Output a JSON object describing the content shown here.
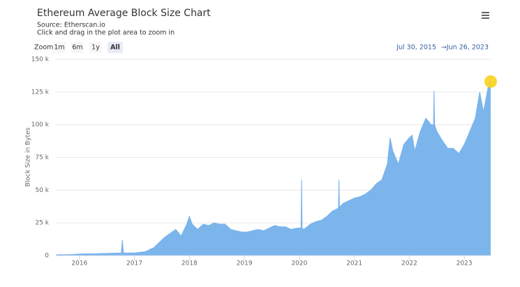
{
  "chart_data": {
    "type": "area",
    "title": "Ethereum Average Block Size Chart",
    "subtitle": "Source: Etherscan.io",
    "note": "Click and drag in the plot area to zoom in",
    "zoom_label": "Zoom",
    "zoom_buttons": [
      "1m",
      "6m",
      "1y",
      "All"
    ],
    "zoom_selected": 3,
    "range_from": "Jul 30, 2015",
    "range_separator": "→",
    "range_to": "Jun 26, 2023",
    "y_label": "Block Size in Bytes",
    "color": "#7cb5ec",
    "highlight_color": "#f7d21e",
    "grid": true,
    "xlim": [
      2015.57,
      2023.48
    ],
    "xticks": [
      2016,
      2017,
      2018,
      2019,
      2020,
      2021,
      2022,
      2023
    ],
    "ylim": [
      0,
      150000
    ],
    "yticks": [
      0,
      {
        "value": 25000,
        "label": "25 k"
      },
      {
        "value": 50000,
        "label": "50 k"
      },
      {
        "value": 75000,
        "label": "75 k"
      },
      {
        "value": 100000,
        "label": "100 k"
      },
      {
        "value": 125000,
        "label": "125 k"
      },
      {
        "value": 150000,
        "label": "150 k"
      }
    ],
    "x": [
      2015.58,
      2015.8,
      2016.0,
      2016.3,
      2016.6,
      2016.76,
      2016.78,
      2016.8,
      2017.0,
      2017.2,
      2017.35,
      2017.45,
      2017.55,
      2017.65,
      2017.75,
      2017.85,
      2017.95,
      2018.0,
      2018.05,
      2018.15,
      2018.25,
      2018.35,
      2018.45,
      2018.55,
      2018.65,
      2018.75,
      2018.85,
      2018.95,
      2019.05,
      2019.15,
      2019.25,
      2019.35,
      2019.45,
      2019.55,
      2019.65,
      2019.75,
      2019.85,
      2019.95,
      2020.03,
      2020.04,
      2020.05,
      2020.08,
      2020.2,
      2020.3,
      2020.4,
      2020.5,
      2020.6,
      2020.7,
      2020.71,
      2020.72,
      2020.73,
      2020.8,
      2020.9,
      2021.0,
      2021.1,
      2021.2,
      2021.3,
      2021.4,
      2021.5,
      2021.6,
      2021.65,
      2021.7,
      2021.8,
      2021.9,
      2022.0,
      2022.05,
      2022.1,
      2022.2,
      2022.3,
      2022.4,
      2022.44,
      2022.45,
      2022.46,
      2022.5,
      2022.6,
      2022.7,
      2022.8,
      2022.9,
      2023.0,
      2023.1,
      2023.2,
      2023.28,
      2023.35,
      2023.43,
      2023.48
    ],
    "values": [
      700,
      700,
      1200,
      1500,
      1800,
      2000,
      12000,
      2000,
      2000,
      3000,
      6000,
      10000,
      14000,
      17000,
      20000,
      15000,
      24000,
      30000,
      24000,
      20000,
      24000,
      23000,
      25000,
      24000,
      24000,
      20000,
      19000,
      18000,
      18000,
      19000,
      20000,
      19000,
      21000,
      23000,
      22000,
      22000,
      20000,
      21000,
      21000,
      58000,
      21000,
      20000,
      24000,
      26000,
      27000,
      30000,
      34000,
      36000,
      36000,
      58000,
      37000,
      40000,
      42000,
      44000,
      45000,
      47000,
      50000,
      55000,
      58000,
      70000,
      90000,
      80000,
      70000,
      85000,
      90000,
      92000,
      80000,
      95000,
      105000,
      100000,
      100000,
      126000,
      100000,
      95000,
      88000,
      82000,
      82000,
      78000,
      85000,
      95000,
      105000,
      125000,
      110000,
      128000,
      133000
    ]
  }
}
